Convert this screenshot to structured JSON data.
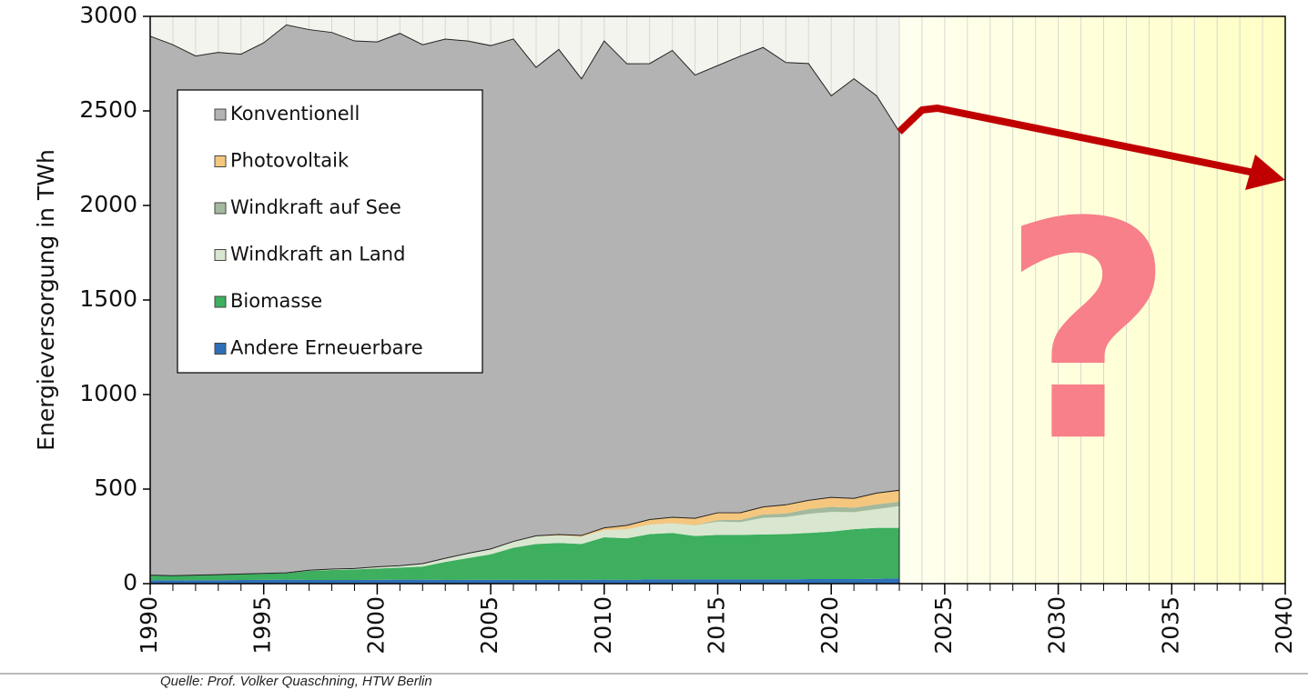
{
  "chart_data": {
    "type": "stacked_area",
    "y_label": "Energieversorgung in TWh",
    "source": "Quelle: Prof. Volker Quaschning, HTW Berlin",
    "annotation": "?",
    "x": [
      1990,
      1991,
      1992,
      1993,
      1994,
      1995,
      1996,
      1997,
      1998,
      1999,
      2000,
      2001,
      2002,
      2003,
      2004,
      2005,
      2006,
      2007,
      2008,
      2009,
      2010,
      2011,
      2012,
      2013,
      2014,
      2015,
      2016,
      2017,
      2018,
      2019,
      2020,
      2021,
      2022,
      2023
    ],
    "series": [
      {
        "name": "Andere Erneuerbare",
        "color": "#2f6fb7",
        "values": [
          18,
          18,
          18,
          18,
          19,
          20,
          21,
          19,
          19,
          19,
          20,
          21,
          21,
          19,
          20,
          20,
          20,
          20,
          20,
          20,
          21,
          19,
          22,
          23,
          22,
          22,
          22,
          22,
          22,
          24,
          24,
          24,
          25,
          28
        ]
      },
      {
        "name": "Biomasse",
        "color": "#3daf5f",
        "values": [
          27,
          24,
          27,
          29,
          31,
          32,
          34,
          49,
          53,
          56,
          60,
          64,
          69,
          96,
          115,
          135,
          170,
          190,
          195,
          190,
          224,
          221,
          240,
          245,
          230,
          236,
          236,
          238,
          240,
          244,
          251,
          264,
          270,
          267
        ]
      },
      {
        "name": "Windkraft an Land",
        "color": "#d9e7d0",
        "values": [
          0,
          0,
          0.3,
          0.6,
          1,
          2,
          2,
          3,
          5,
          5,
          9,
          10,
          16,
          19,
          25,
          27,
          31,
          40,
          40,
          38,
          38,
          48,
          50,
          51,
          56,
          70,
          67,
          88,
          90,
          101,
          104,
          90,
          99,
          115
        ]
      },
      {
        "name": "Windkraft auf See",
        "color": "#a3b99d",
        "values": [
          0,
          0,
          0,
          0,
          0,
          0,
          0,
          0,
          0,
          0,
          0,
          0,
          0,
          0,
          0,
          0,
          0,
          0,
          0,
          0,
          0.2,
          0.6,
          0.7,
          0.9,
          1.5,
          8,
          12,
          18,
          19,
          25,
          27,
          24,
          25,
          24
        ]
      },
      {
        "name": "Photovoltaik",
        "color": "#f5c77e",
        "values": [
          0,
          0,
          0,
          0,
          0,
          0,
          0,
          0,
          0,
          0,
          0,
          0,
          0,
          0,
          0.5,
          1.3,
          2.2,
          3.1,
          4.4,
          6.6,
          11.7,
          19.6,
          26.4,
          31,
          36,
          38.7,
          38.1,
          39.4,
          45.8,
          46.4,
          50,
          49,
          60,
          60
        ]
      },
      {
        "name": "Konventionell",
        "color": "#b3b3b3",
        "values": [
          2850,
          2808,
          2745,
          2762,
          2749,
          2806,
          2898,
          2859,
          2838,
          2790,
          2776,
          2815,
          2744,
          2746,
          2709,
          2662,
          2657,
          2477,
          2566,
          2415,
          2575,
          2441,
          2411,
          2469,
          2344,
          2365,
          2415,
          2430,
          2339,
          2310,
          2124,
          2219,
          2101,
          1896
        ]
      }
    ],
    "xlim": [
      1990,
      2040
    ],
    "xticks": [
      1990,
      1995,
      2000,
      2005,
      2010,
      2015,
      2020,
      2025,
      2030,
      2035,
      2040
    ],
    "ylim": [
      0,
      3000
    ],
    "yticks": [
      0,
      500,
      1000,
      1500,
      2000,
      2500,
      3000
    ],
    "grid": true
  }
}
